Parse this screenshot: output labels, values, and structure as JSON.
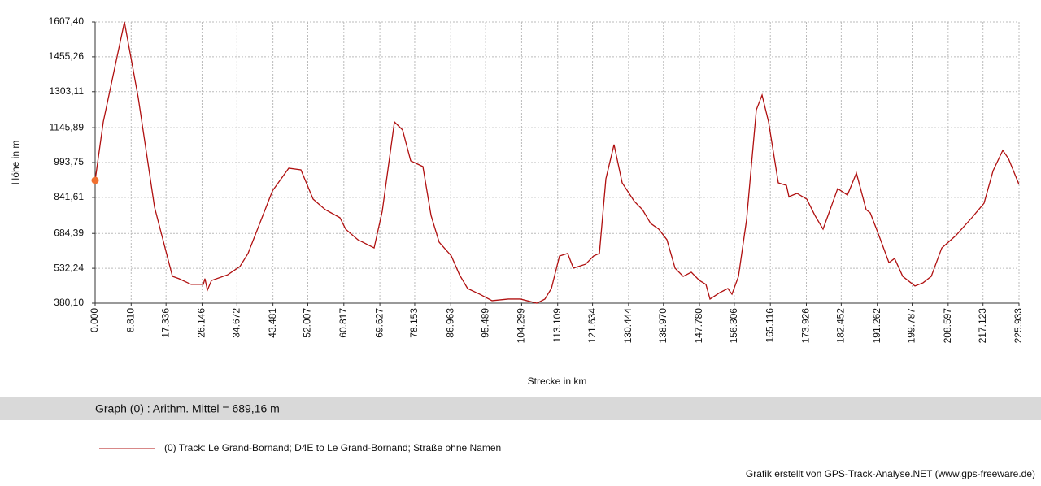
{
  "chart_data": {
    "type": "line",
    "ylabel": "Höhe  in  m",
    "xlabel": "Strecke  in  km",
    "summary": "Graph (0) :  Arithm. Mittel = 689,16 m",
    "credit": "Grafik erstellt von GPS-Track-Analyse.NET (www.gps-freeware.de)",
    "grid": true,
    "xlim": [
      0,
      225.933
    ],
    "ylim": [
      380.1,
      1607.4
    ],
    "xticks": [
      {
        "value": 0,
        "label": "0.000"
      },
      {
        "value": 8.81,
        "label": "8.810"
      },
      17.336,
      26.146,
      34.672,
      43.481,
      52.007,
      60.817,
      69.627,
      78.153,
      86.963,
      95.489,
      104.299,
      113.109,
      121.634,
      130.444,
      {
        "value": 138.97,
        "label": "138.970"
      },
      {
        "value": 147.78,
        "label": "147.780"
      },
      156.306,
      165.116,
      173.926,
      182.452,
      191.262,
      199.787,
      208.597,
      217.123,
      225.933
    ],
    "yticks": [
      {
        "value": 380.1,
        "label": "380,10"
      },
      {
        "value": 532.24,
        "label": "532,24"
      },
      {
        "value": 684.39,
        "label": "684,39"
      },
      {
        "value": 841.61,
        "label": "841,61"
      },
      {
        "value": 993.75,
        "label": "993,75"
      },
      {
        "value": 1145.89,
        "label": "1145,89"
      },
      {
        "value": 1303.11,
        "label": "1303,11"
      },
      {
        "value": 1455.26,
        "label": "1455,26"
      },
      {
        "value": 1607.4,
        "label": "1607,40"
      }
    ],
    "x": [
      0,
      1.99,
      7.16,
      10.54,
      14.52,
      18.9,
      20.49,
      23.47,
      26.45,
      26.85,
      27.45,
      28.44,
      32.42,
      35.4,
      37.39,
      43.36,
      47.34,
      50.32,
      53.3,
      56.28,
      59.86,
      61.26,
      64.24,
      68.22,
      70.21,
      73.19,
      75.18,
      77.17,
      80.15,
      82.14,
      84.13,
      87.11,
      89.1,
      91.09,
      94.07,
      97.06,
      101.03,
      104.02,
      108,
      109.98,
      111.57,
      113.56,
      115.55,
      116.95,
      119.93,
      121.92,
      123.31,
      124.9,
      126.89,
      128.88,
      131.86,
      133.85,
      135.84,
      137.83,
      139.82,
      141.81,
      143.8,
      145.78,
      147.77,
      149.36,
      150.36,
      152.74,
      154.73,
      155.73,
      157.32,
      159.31,
      161.69,
      163.09,
      164.68,
      167.06,
      169.05,
      169.65,
      171.64,
      174.03,
      176.01,
      178.0,
      179.59,
      181.58,
      183.97,
      186.16,
      188.54,
      189.54,
      191.53,
      194.11,
      195.5,
      197.49,
      200.48,
      202.47,
      204.46,
      207.04,
      210.42,
      214.4,
      217.38,
      219.59,
      221.96,
      223.35,
      225.93
    ],
    "series": [
      {
        "name": "(0) Track: Le Grand-Bornand; D4E to Le Grand-Bornand; Straße ohne Namen",
        "color": "#b01010",
        "values": [
          915.7,
          1171,
          1607.4,
          1277,
          799,
          497,
          487,
          462,
          462,
          487,
          437,
          479,
          504,
          540,
          597,
          870,
          969,
          962,
          834,
          788,
          753,
          703,
          657,
          621,
          781,
          1171,
          1136,
          1001,
          976,
          763,
          646,
          586,
          504,
          444,
          419,
          391,
          398,
          398,
          380,
          398,
          444,
          586,
          597,
          533,
          550,
          586,
          597,
          923,
          1072,
          905,
          824,
          788,
          728,
          703,
          657,
          533,
          497,
          515,
          479,
          462,
          398,
          426,
          444,
          419,
          497,
          745,
          1224,
          1288,
          1171,
          905,
          894,
          845,
          859,
          834,
          763,
          703,
          781,
          880,
          852,
          948,
          788,
          774,
          682,
          557,
          575,
          497,
          455,
          469,
          497,
          621,
          674,
          753,
          816,
          958,
          1047,
          1011,
          898
        ]
      }
    ]
  }
}
